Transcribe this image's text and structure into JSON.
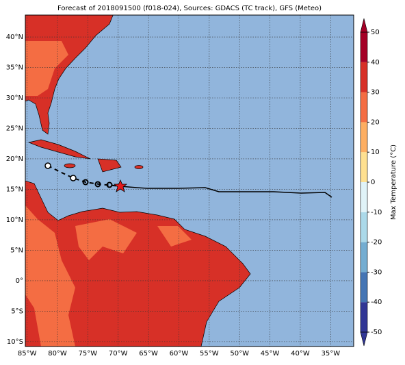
{
  "title": "Forecast of 2018091500 (f018-024), Sources: GDACS (TC track), GFS (Meteo)",
  "map": {
    "lonlim": [
      -85.3,
      -31.2
    ],
    "latlim": [
      -10.8,
      43.6
    ],
    "lonticks": [
      {
        "value": -85,
        "label": "85°W"
      },
      {
        "value": -80,
        "label": "80°W"
      },
      {
        "value": -75,
        "label": "75°W"
      },
      {
        "value": -70,
        "label": "70°W"
      },
      {
        "value": -65,
        "label": "65°W"
      },
      {
        "value": -60,
        "label": "60°W"
      },
      {
        "value": -55,
        "label": "55°W"
      },
      {
        "value": -50,
        "label": "50°W"
      },
      {
        "value": -45,
        "label": "45°W"
      },
      {
        "value": -40,
        "label": "40°W"
      },
      {
        "value": -35,
        "label": "35°W"
      }
    ],
    "latticks": [
      {
        "value": 40,
        "label": "40°N"
      },
      {
        "value": 35,
        "label": "35°N"
      },
      {
        "value": 30,
        "label": "30°N"
      },
      {
        "value": 25,
        "label": "25°N"
      },
      {
        "value": 20,
        "label": "20°N"
      },
      {
        "value": 15,
        "label": "15°N"
      },
      {
        "value": 10,
        "label": "10°N"
      },
      {
        "value": 5,
        "label": "5°N"
      },
      {
        "value": 0,
        "label": "0°"
      },
      {
        "value": -5,
        "label": "5°S"
      },
      {
        "value": -10,
        "label": "10°S"
      }
    ],
    "grid": true
  },
  "colorbar": {
    "label": "Max Temperature (°C)",
    "lim": [
      -50,
      50
    ],
    "ticks": [
      -50,
      -40,
      -30,
      -20,
      -10,
      0,
      10,
      20,
      30,
      40,
      50
    ],
    "colors": [
      "#313695",
      "#4575b4",
      "#74add1",
      "#abd9e9",
      "#e0f3f8",
      "#fee090",
      "#fdae61",
      "#f46d43",
      "#d73027",
      "#a50026"
    ]
  }
}
